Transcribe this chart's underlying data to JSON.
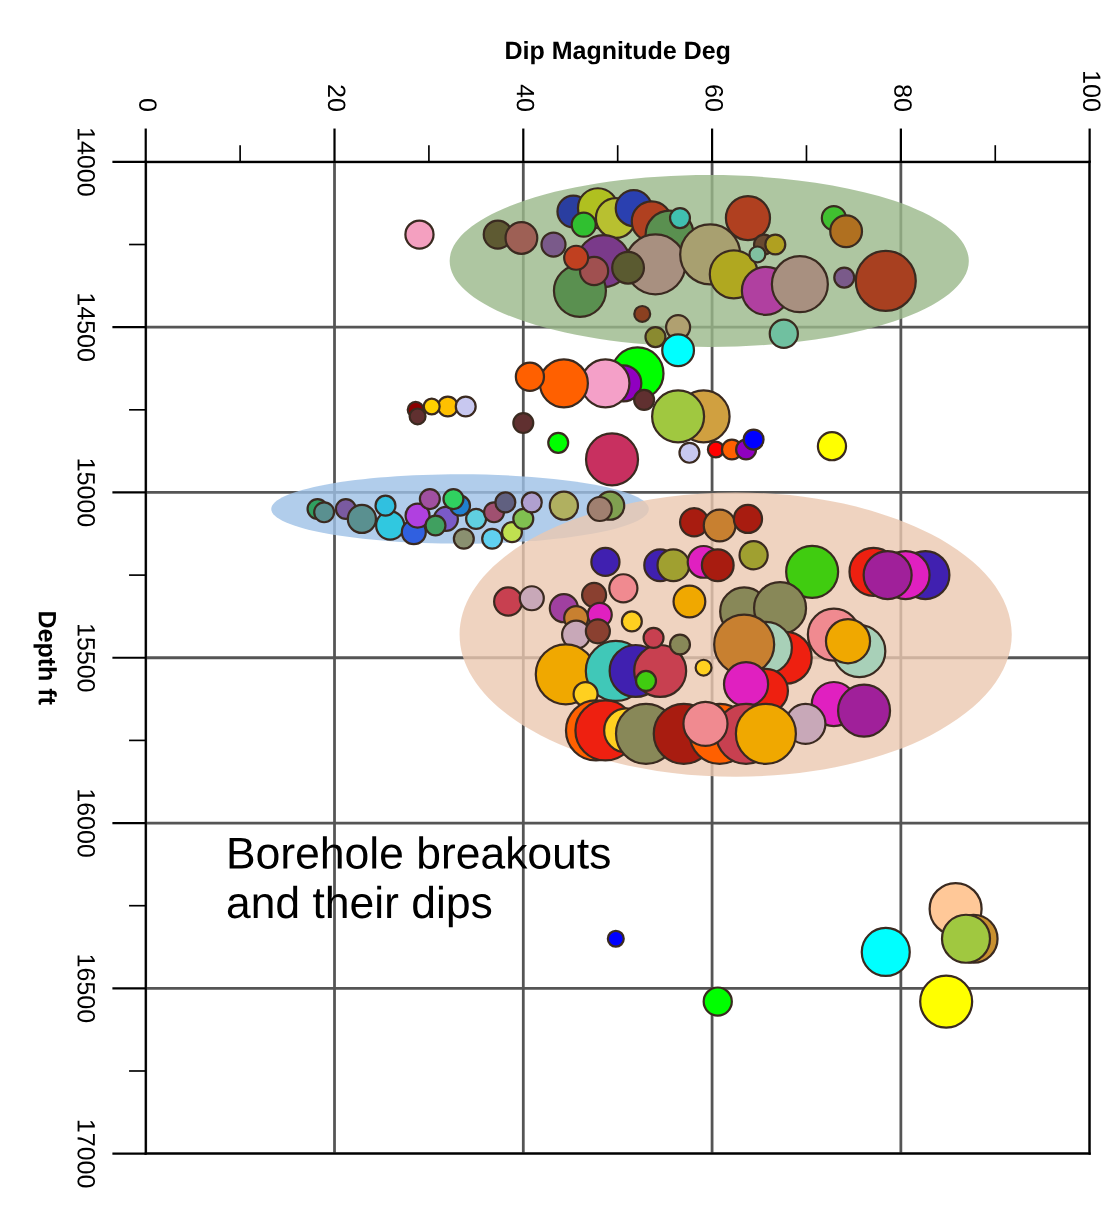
{
  "chart_data": {
    "type": "bubble",
    "xlabel": "Dip Magnitude Deg",
    "ylabel": "Depth ft",
    "xlim": [
      0,
      100
    ],
    "ylim": [
      17000,
      14000
    ],
    "xticks": [
      0,
      {
        "value": 10,
        "label": null
      },
      20,
      {
        "value": 30,
        "label": null
      },
      40,
      {
        "value": 50,
        "label": null
      },
      60,
      {
        "value": 70,
        "label": null
      },
      80,
      {
        "value": 90,
        "label": null
      },
      100
    ],
    "yticks": [
      14000,
      {
        "value": 14250,
        "label": null
      },
      14500,
      {
        "value": 14750,
        "label": null
      },
      15000,
      {
        "value": 15250,
        "label": null
      },
      15500,
      {
        "value": 15750,
        "label": null
      },
      16000,
      {
        "value": 16250,
        "label": null
      },
      16500,
      {
        "value": 16750,
        "label": null
      },
      17000
    ],
    "grid": true,
    "annotations": [
      "Borehole breakouts\nand their dips"
    ],
    "series": [
      {
        "x": [
          29.0,
          37.3,
          39.8,
          43.2,
          45.3,
          47.9,
          49.8,
          46.4,
          51.7,
          53.6,
          55.5,
          48.5,
          46.0,
          54.0,
          51.1,
          47.5,
          45.6,
          56.6,
          59.8,
          62.3,
          63.8,
          65.5,
          66.7,
          64.8,
          65.7,
          69.3,
          72.9,
          74.2,
          74.0,
          78.4,
          52.6,
          56.4,
          54.0,
          67.6,
          56.4,
          52.1,
          50.6,
          48.7,
          44.3,
          40.7,
          52.8,
          59.1,
          56.4,
          40.0,
          43.7,
          49.4,
          57.6,
          60.4,
          62.1,
          63.6,
          64.4,
          72.7,
          32.0,
          33.9,
          28.6,
          28.8,
          30.3,
          18.2,
          18.9,
          21.2,
          22.9,
          25.9,
          28.4,
          28.8,
          31.8,
          33.3,
          33.7,
          35.0,
          36.7,
          36.9,
          38.1,
          38.8,
          40.0,
          40.9,
          44.3,
          49.2,
          48.1,
          25.4,
          30.1,
          32.6,
          30.7,
          58.1,
          60.8,
          63.8,
          48.7,
          54.5,
          55.9,
          59.1,
          60.6,
          64.4,
          70.6,
          77.1,
          82.6,
          80.5,
          78.6,
          38.4,
          40.9,
          44.3,
          47.5,
          50.6,
          45.6,
          48.1,
          51.5,
          45.6,
          47.9,
          57.6,
          63.4,
          67.2,
          72.9,
          75.6,
          74.4,
          67.8,
          65.7,
          63.4,
          44.5,
          49.8,
          51.9,
          54.5,
          53.0,
          56.6,
          59.1,
          46.6,
          53.8,
          65.7,
          63.6,
          72.9,
          76.1,
          47.7,
          48.7,
          50.9,
          53.0,
          57.0,
          60.8,
          63.6,
          69.9,
          65.7,
          59.3,
          49.8,
          60.6,
          78.4,
          85.8,
          87.7,
          86.9,
          84.8
        ],
        "values": [
          14220,
          14220,
          14230,
          14250,
          14150,
          14140,
          14170,
          14190,
          14140,
          14180,
          14220,
          14300,
          14390,
          14310,
          14320,
          14330,
          14290,
          14170,
          14280,
          14340,
          14170,
          14250,
          14250,
          14280,
          14390,
          14370,
          14170,
          14210,
          14350,
          14360,
          14460,
          14500,
          14530,
          14520,
          14570,
          14640,
          14670,
          14670,
          14670,
          14650,
          14720,
          14770,
          14770,
          14790,
          14850,
          14900,
          14880,
          14870,
          14870,
          14870,
          14840,
          14860,
          14740,
          14740,
          14750,
          14770,
          14740,
          15050,
          15060,
          15050,
          15080,
          15100,
          15120,
          15070,
          15080,
          15040,
          15140,
          15080,
          15140,
          15060,
          15030,
          15120,
          15080,
          15030,
          15040,
          15040,
          15050,
          15040,
          15020,
          15020,
          15100,
          15090,
          15100,
          15080,
          15210,
          15220,
          15220,
          15210,
          15220,
          15190,
          15240,
          15240,
          15250,
          15250,
          15250,
          15330,
          15320,
          15350,
          15310,
          15290,
          15380,
          15370,
          15390,
          15430,
          15420,
          15330,
          15360,
          15350,
          15430,
          15480,
          15450,
          15500,
          15470,
          15460,
          15550,
          15540,
          15540,
          15540,
          15570,
          15460,
          15530,
          15610,
          15440,
          15600,
          15580,
          15640,
          15660,
          15720,
          15720,
          15720,
          15730,
          15730,
          15730,
          15730,
          15700,
          15730,
          15700,
          16350,
          16540,
          16390,
          16260,
          16350,
          16350,
          16540
        ],
        "sizes": [
          0.22,
          0.22,
          0.28,
          0.16,
          0.28,
          0.44,
          0.44,
          0.16,
          0.36,
          0.44,
          0.64,
          0.75,
          0.75,
          1,
          0.28,
          0.22,
          0.16,
          0.11,
          1,
          0.64,
          0.54,
          0.11,
          0.11,
          0.07,
          0.64,
          0.87,
          0.16,
          0.28,
          0.11,
          1,
          0.07,
          0.16,
          0.11,
          0.22,
          0.28,
          0.75,
          0.36,
          0.64,
          0.64,
          0.22,
          0.11,
          0.75,
          0.75,
          0.11,
          0.11,
          0.75,
          0.11,
          0.07,
          0.11,
          0.11,
          0.11,
          0.22,
          0.11,
          0.11,
          0.07,
          0.07,
          0.07,
          0.11,
          0.11,
          0.11,
          0.22,
          0.22,
          0.16,
          0.16,
          0.16,
          0.11,
          0.11,
          0.11,
          0.11,
          0.11,
          0.11,
          0.11,
          0.11,
          0.11,
          0.22,
          0.22,
          0.16,
          0.11,
          0.11,
          0.11,
          0.11,
          0.22,
          0.28,
          0.22,
          0.22,
          0.28,
          0.28,
          0.28,
          0.28,
          0.22,
          0.75,
          0.64,
          0.64,
          0.64,
          0.64,
          0.22,
          0.16,
          0.22,
          0.16,
          0.22,
          0.16,
          0.16,
          0.11,
          0.22,
          0.16,
          0.28,
          0.64,
          0.75,
          0.75,
          0.75,
          0.54,
          0.75,
          0.75,
          1,
          1,
          1,
          0.75,
          0.75,
          0.11,
          0.11,
          0.07,
          0.16,
          0.11,
          0.54,
          0.54,
          0.54,
          0.75,
          1,
          1,
          0.54,
          1,
          1,
          1,
          1,
          0.44,
          1,
          0.54,
          0.07,
          0.22,
          0.64,
          0.75,
          0.64,
          0.64,
          0.75
        ],
        "colors": [
          "#f4a0c0",
          "#5e5a32",
          "#9e6055",
          "#7a5a8a",
          "#2a3ea0",
          "#b0c020",
          "#b8c030",
          "#30c030",
          "#2a40b0",
          "#b04020",
          "#5a9050",
          "#7a3a8a",
          "#5a9050",
          "#a89080",
          "#5a5a30",
          "#a05050",
          "#c04020",
          "#40c0b0",
          "#a8a070",
          "#b0a820",
          "#b04020",
          "#6a4a30",
          "#b0a020",
          "#80c0a0",
          "#b040a0",
          "#a89080",
          "#40c030",
          "#b07020",
          "#7a5a8a",
          "#a84020",
          "#8a4020",
          "#b0a070",
          "#8a8a30",
          "#70c0a0",
          "#00ffff",
          "#00ff00",
          "#9000c0",
          "#f4a0c8",
          "#ff6000",
          "#ff6000",
          "#603030",
          "#d0a040",
          "#a0c840",
          "#603030",
          "#00ff00",
          "#c83060",
          "#c8c8f0",
          "#ff0000",
          "#ff6000",
          "#9000c0",
          "#0000ff",
          "#ffff00",
          "#ffc000",
          "#c8c8f0",
          "#8b0000",
          "#603030",
          "#ffd000",
          "#30a060",
          "#5a9090",
          "#7a5aa0",
          "#5a9090",
          "#30c8e0",
          "#3060e0",
          "#b040e0",
          "#7a5ac8",
          "#2080d0",
          "#8a9070",
          "#60d0e0",
          "#60d0f0",
          "#a05070",
          "#606080",
          "#c0e050",
          "#80c050",
          "#b0a0d0",
          "#b0b060",
          "#80a050",
          "#a08070",
          "#30c0e0",
          "#a050a0",
          "#30d060",
          "#40a060",
          "#a81c10",
          "#c88030",
          "#a81c10",
          "#4020b0",
          "#4020b0",
          "#a0a030",
          "#e020c0",
          "#a81c10",
          "#a0a030",
          "#40cc10",
          "#ee2010",
          "#4020b0",
          "#e020c0",
          "#a0209a",
          "#c84050",
          "#c8a8b8",
          "#a040a0",
          "#8a4030",
          "#f08a90",
          "#c88030",
          "#e020c0",
          "#ffd020",
          "#c8a8b8",
          "#8a4030",
          "#f0a800",
          "#888858",
          "#888858",
          "#f08a90",
          "#a8d0b8",
          "#f0a800",
          "#ee2010",
          "#a8d0b8",
          "#c88030",
          "#f0a800",
          "#40c8b8",
          "#4020b0",
          "#c84050",
          "#40cc10",
          "#888858",
          "#ffd020",
          "#ffd020",
          "#c84050",
          "#ee2010",
          "#e020c0",
          "#e020c0",
          "#a0209a",
          "#ff6000",
          "#ee2010",
          "#ffd020",
          "#888858",
          "#a81c10",
          "#ff6000",
          "#c84050",
          "#c8a8b8",
          "#f0a800",
          "#f08a90",
          "#0000ff",
          "#00ff00",
          "#00ffff",
          "#ffc898",
          "#c89030",
          "#a0c840",
          "#ffff00"
        ]
      }
    ]
  }
}
